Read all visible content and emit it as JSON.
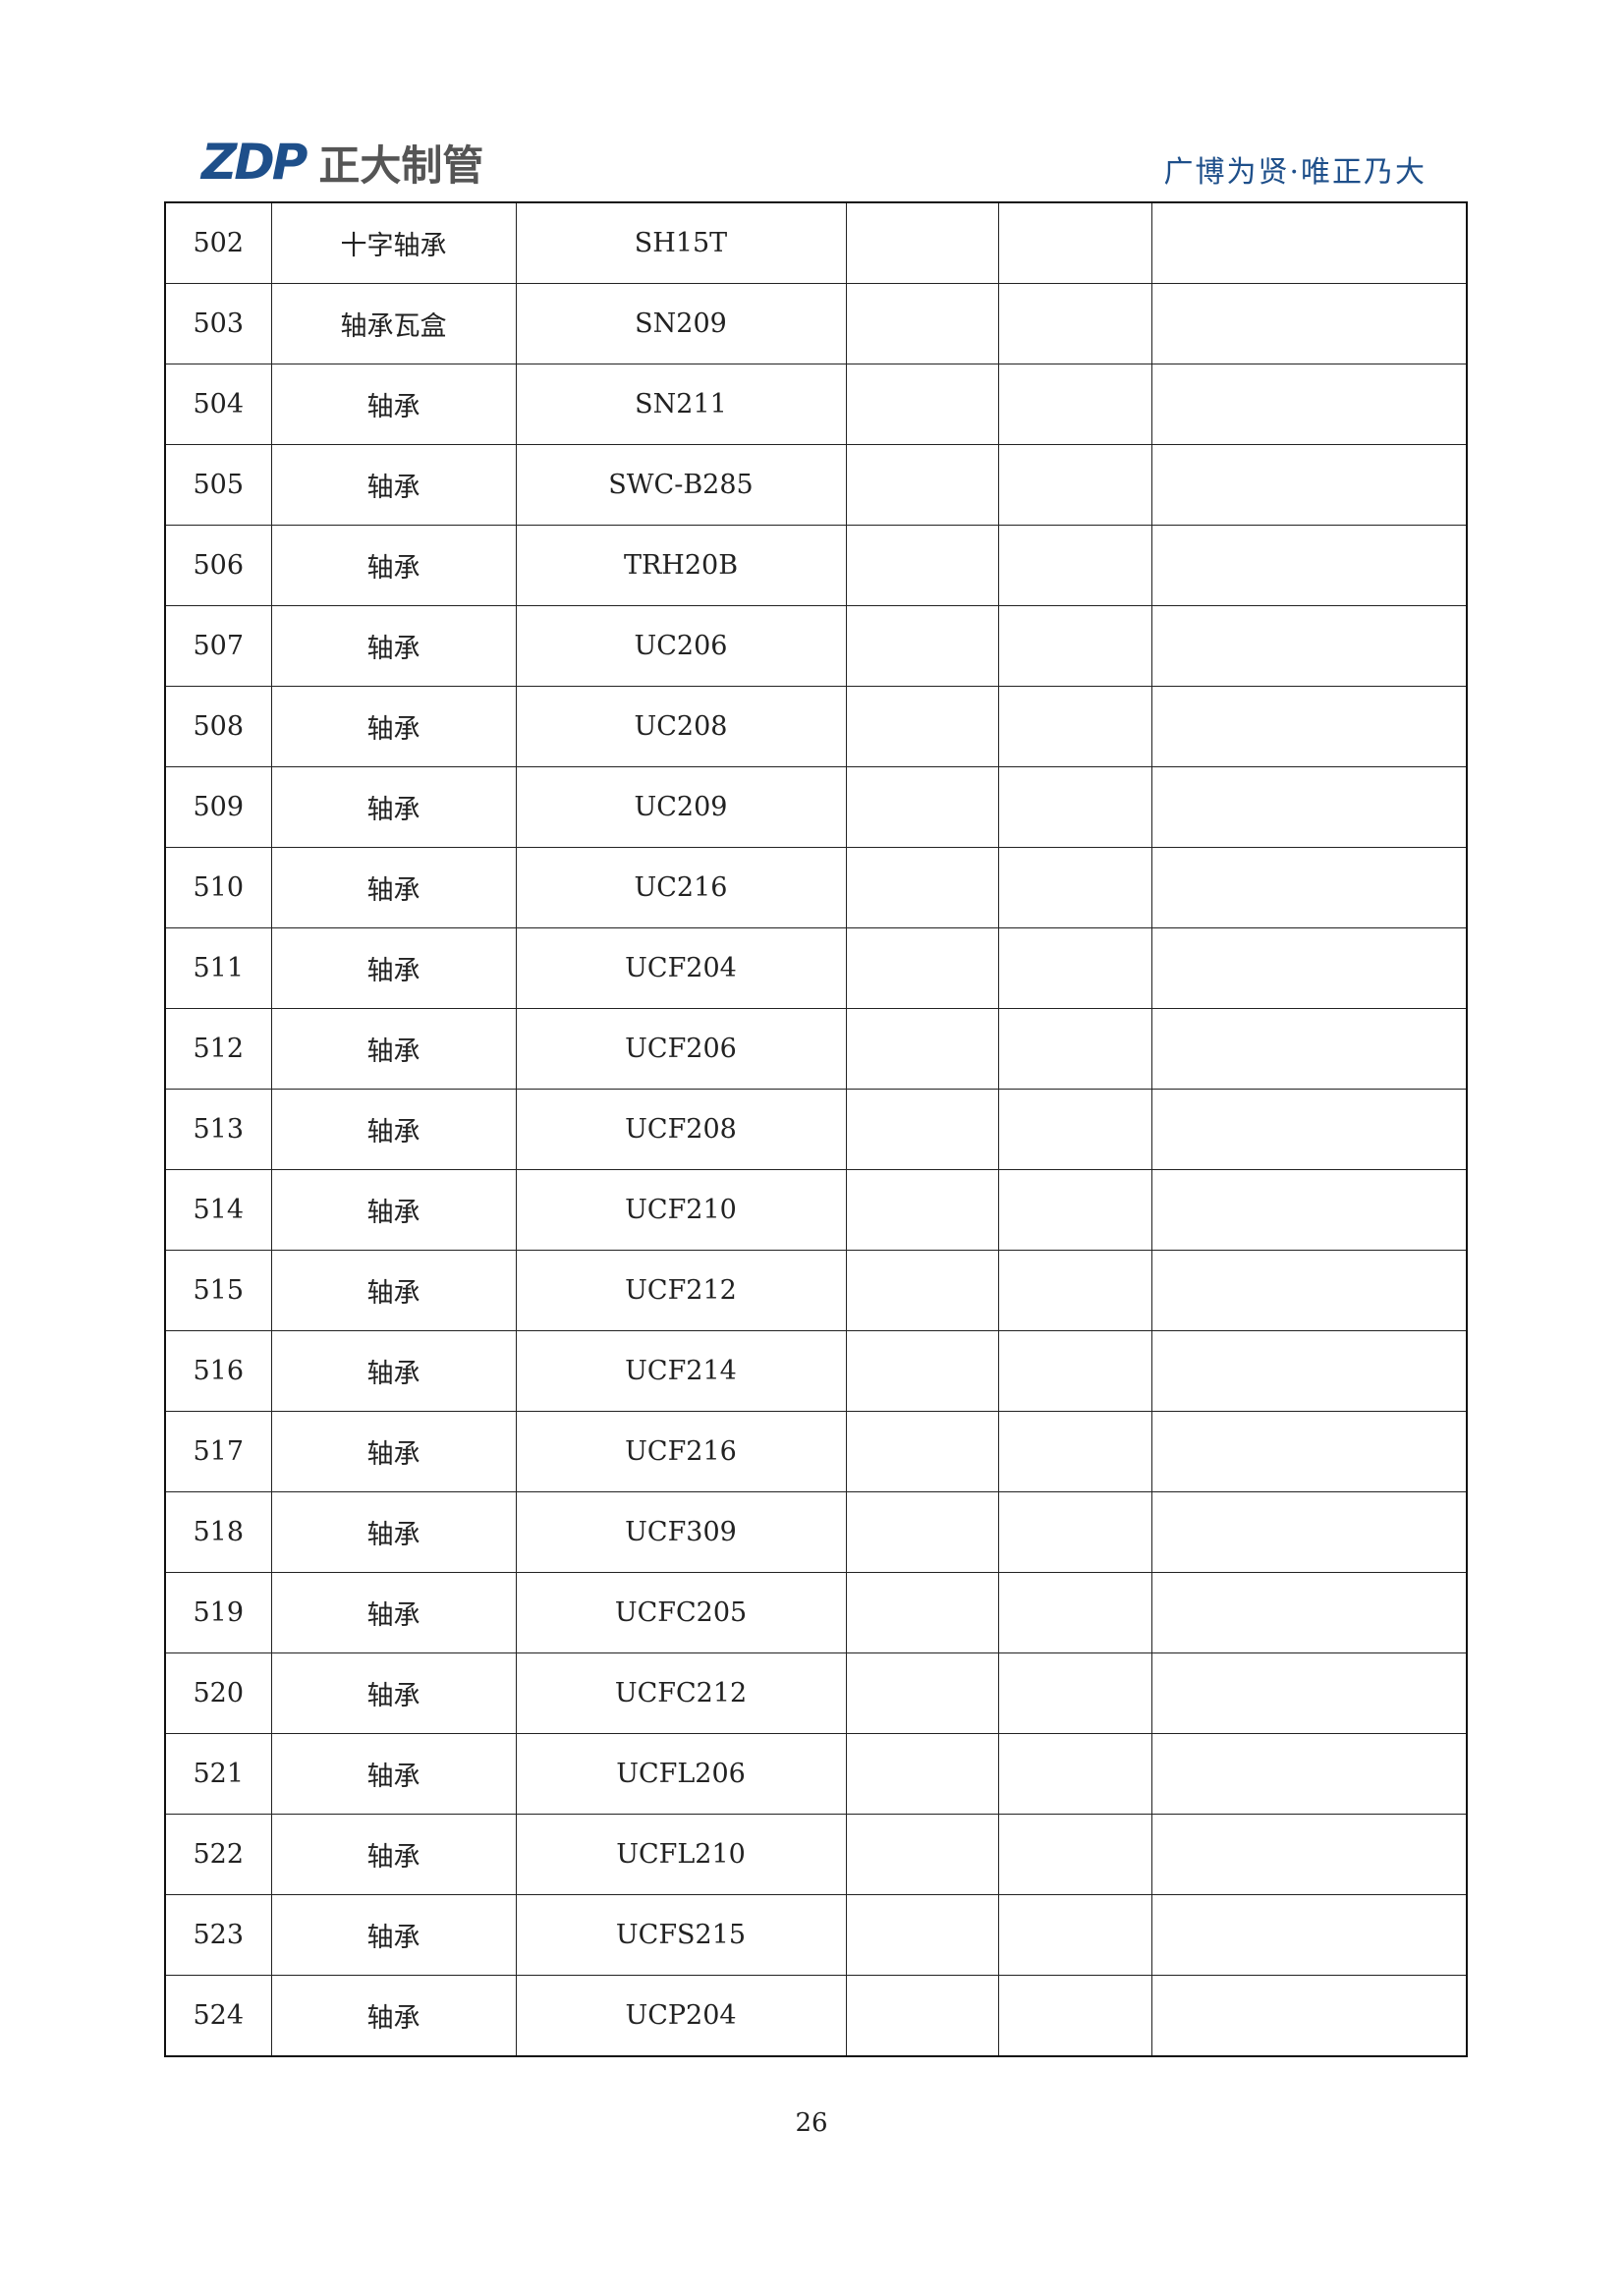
{
  "header": {
    "logo_mark": "ZDP",
    "logo_text": "正大制管",
    "slogan": "广博为贤·唯正乃大"
  },
  "table": {
    "rows": [
      [
        "502",
        "十字轴承",
        "SH15T"
      ],
      [
        "503",
        "轴承瓦盒",
        "SN209"
      ],
      [
        "504",
        "轴承",
        "SN211"
      ],
      [
        "505",
        "轴承",
        "SWC-B285"
      ],
      [
        "506",
        "轴承",
        "TRH20B"
      ],
      [
        "507",
        "轴承",
        "UC206"
      ],
      [
        "508",
        "轴承",
        "UC208"
      ],
      [
        "509",
        "轴承",
        "UC209"
      ],
      [
        "510",
        "轴承",
        "UC216"
      ],
      [
        "511",
        "轴承",
        "UCF204"
      ],
      [
        "512",
        "轴承",
        "UCF206"
      ],
      [
        "513",
        "轴承",
        "UCF208"
      ],
      [
        "514",
        "轴承",
        "UCF210"
      ],
      [
        "515",
        "轴承",
        "UCF212"
      ],
      [
        "516",
        "轴承",
        "UCF214"
      ],
      [
        "517",
        "轴承",
        "UCF216"
      ],
      [
        "518",
        "轴承",
        "UCF309"
      ],
      [
        "519",
        "轴承",
        "UCFC205"
      ],
      [
        "520",
        "轴承",
        "UCFC212"
      ],
      [
        "521",
        "轴承",
        "UCFL206"
      ],
      [
        "522",
        "轴承",
        "UCFL210"
      ],
      [
        "523",
        "轴承",
        "UCFS215"
      ],
      [
        "524",
        "轴承",
        "UCP204"
      ]
    ]
  },
  "footer": {
    "page_number": "26"
  }
}
